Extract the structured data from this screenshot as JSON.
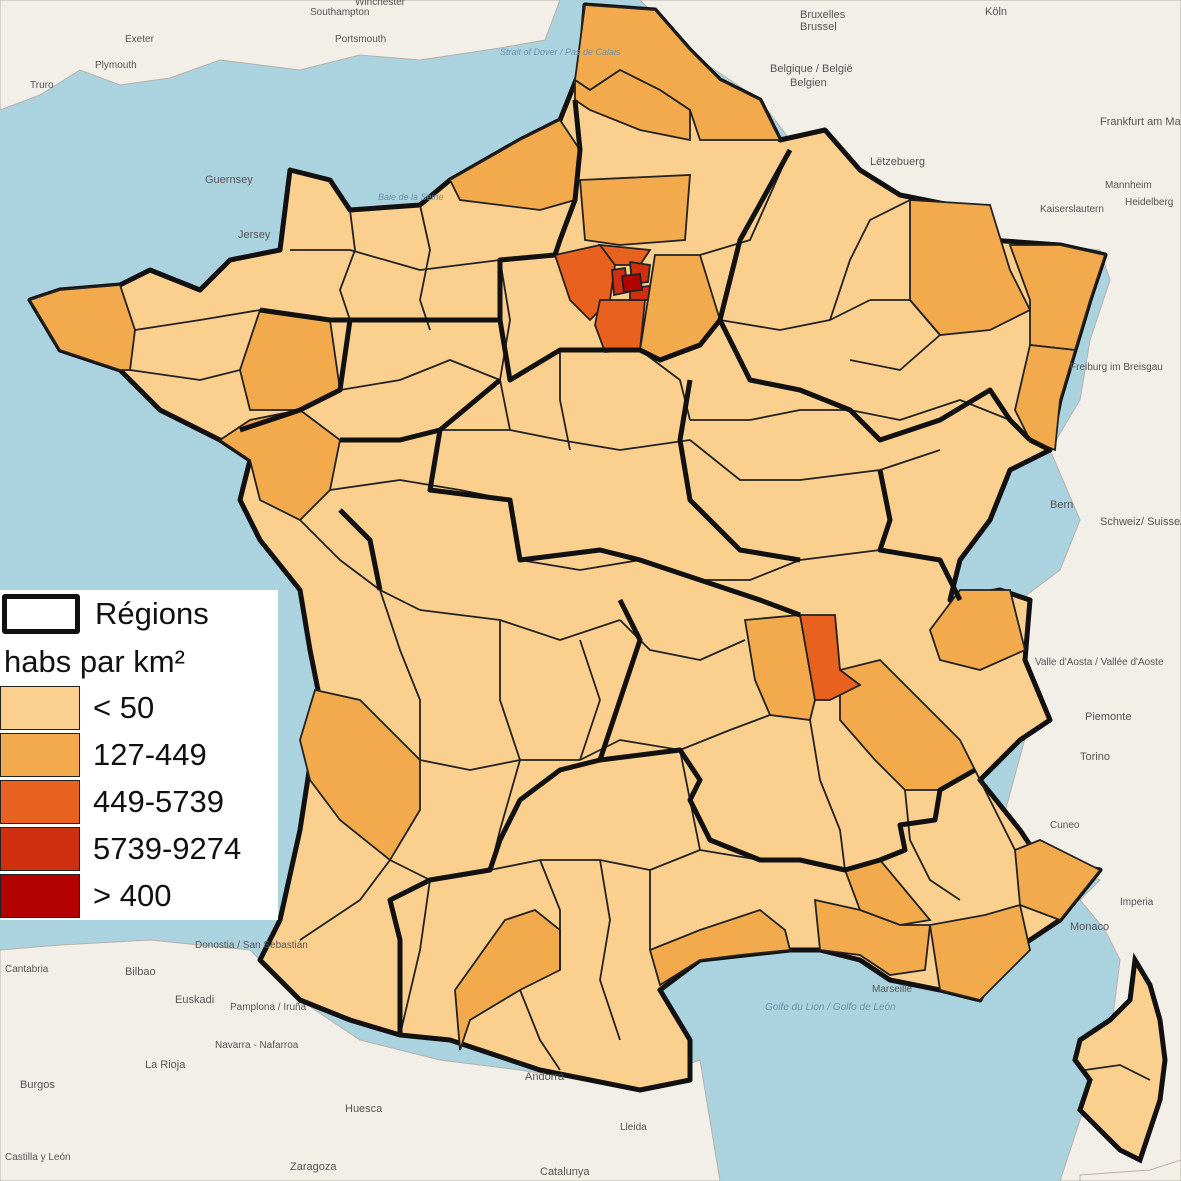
{
  "map": {
    "colors": {
      "sea": "#aad3df",
      "land_neighbor": "#f2efe9",
      "tier_lt50": "#fbd08f",
      "tier_127_449": "#f2aa4c",
      "tier_449_5739": "#e8611f",
      "tier_5739_9274": "#cf3010",
      "tier_gt400": "#b30000",
      "region_border": "#111111"
    },
    "basemap_labels": [
      {
        "id": "southampton",
        "text": "Southampton"
      },
      {
        "id": "winchester",
        "text": "Winchester"
      },
      {
        "id": "portsmouth",
        "text": "Portsmouth"
      },
      {
        "id": "exeter",
        "text": "Exeter"
      },
      {
        "id": "plymouth",
        "text": "Plymouth"
      },
      {
        "id": "truro",
        "text": "Truro"
      },
      {
        "id": "guernsey",
        "text": "Guernsey"
      },
      {
        "id": "jersey",
        "text": "Jersey"
      },
      {
        "id": "bruxelles",
        "text": "Bruxelles"
      },
      {
        "id": "brussel",
        "text": "Brussel"
      },
      {
        "id": "belgique",
        "text": "Belgique / België"
      },
      {
        "id": "belgien",
        "text": "Belgien"
      },
      {
        "id": "letzebuerg",
        "text": "Lëtzebuerg"
      },
      {
        "id": "frankfurt",
        "text": "Frankfurt am Main"
      },
      {
        "id": "koeln",
        "text": "Köln"
      },
      {
        "id": "mannheim",
        "text": "Mannheim"
      },
      {
        "id": "heidelberg",
        "text": "Heidelberg"
      },
      {
        "id": "kaiserslautern",
        "text": "Kaiserslautern"
      },
      {
        "id": "freiburg",
        "text": "Freiburg im Breisgau"
      },
      {
        "id": "bern",
        "text": "Bern"
      },
      {
        "id": "schweiz",
        "text": "Schweiz/ Suisse/Svizzera/ Svizra"
      },
      {
        "id": "valledaosta",
        "text": "Valle d'Aosta / Vallée d'Aoste"
      },
      {
        "id": "piemonte",
        "text": "Piemonte"
      },
      {
        "id": "torino",
        "text": "Torino"
      },
      {
        "id": "cuneo",
        "text": "Cuneo"
      },
      {
        "id": "imperia",
        "text": "Imperia"
      },
      {
        "id": "monaco",
        "text": "Monaco"
      },
      {
        "id": "donostia",
        "text": "Donostia / San Sebastián"
      },
      {
        "id": "bilbao",
        "text": "Bilbao"
      },
      {
        "id": "euskadi",
        "text": "Euskadi"
      },
      {
        "id": "pamplona",
        "text": "Pamplona / Iruña"
      },
      {
        "id": "navarra",
        "text": "Navarra - Nafarroa"
      },
      {
        "id": "larioja",
        "text": "La Rioja"
      },
      {
        "id": "burgos",
        "text": "Burgos"
      },
      {
        "id": "huesca",
        "text": "Huesca"
      },
      {
        "id": "zaragoza",
        "text": "Zaragoza"
      },
      {
        "id": "catalunya",
        "text": "Catalunya"
      },
      {
        "id": "andorra",
        "text": "Andorra"
      },
      {
        "id": "golfe",
        "text": "Golfe du Lion / Golfo de León"
      },
      {
        "id": "strait",
        "text": "Strait of Dover / Pas de Calais"
      },
      {
        "id": "baie",
        "text": "Baie de la Seine"
      },
      {
        "id": "cantabria",
        "text": "Cantabria"
      },
      {
        "id": "castilla",
        "text": "Castilla y León"
      },
      {
        "id": "lerida",
        "text": "Lleida"
      },
      {
        "id": "marseille",
        "text": "Marseille"
      }
    ]
  },
  "legend": {
    "regions_label": "Régions",
    "title": "habs par km²",
    "items": [
      {
        "label": "< 50",
        "color": "#fbd08f"
      },
      {
        "label": "127-449",
        "color": "#f2aa4c"
      },
      {
        "label": "449-5739",
        "color": "#e8611f"
      },
      {
        "label": "5739-9274",
        "color": "#cf3010"
      },
      {
        "label": "> 400",
        "color": "#b30000"
      }
    ]
  }
}
